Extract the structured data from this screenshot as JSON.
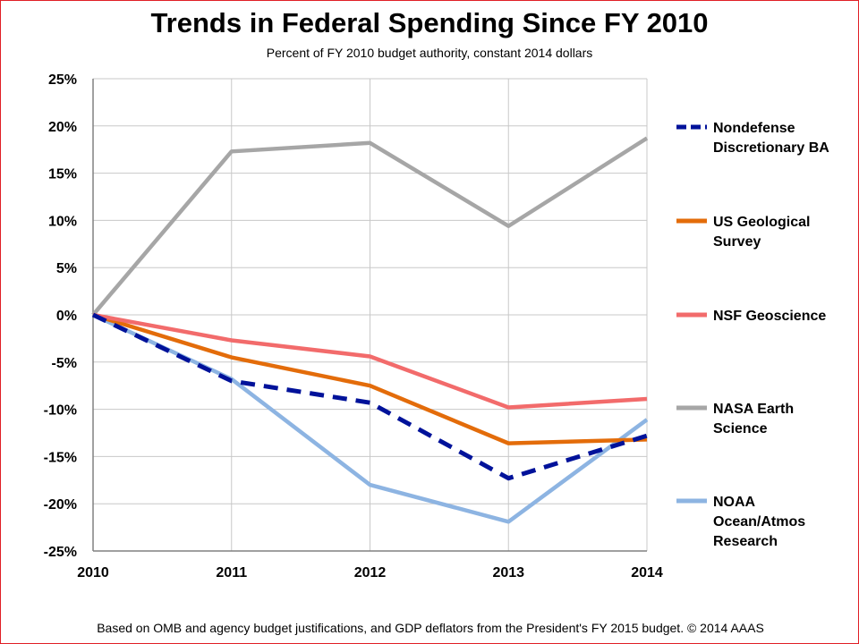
{
  "header": {
    "title": "Trends in Federal Spending Since FY 2010",
    "subtitle": "Percent of FY 2010 budget authority, constant 2014 dollars"
  },
  "footer": {
    "note": "Based on OMB and agency budget justifications, and GDP deflators from the President's FY 2015 budget. © 2014 AAAS"
  },
  "colors": {
    "border": "#e01f26",
    "grid": "#c8c8c8",
    "axis": "#808080"
  },
  "chart_data": {
    "type": "line",
    "title": "Trends in Federal Spending Since FY 2010",
    "subtitle": "Percent of FY 2010 budget authority, constant 2014 dollars",
    "xlabel": "",
    "ylabel": "",
    "x": [
      "2010",
      "2011",
      "2012",
      "2013",
      "2014"
    ],
    "ylim": [
      -25,
      25
    ],
    "yticks": [
      25,
      20,
      15,
      10,
      5,
      0,
      -5,
      -10,
      -15,
      -20,
      -25
    ],
    "ytick_labels": [
      "25%",
      "20%",
      "15%",
      "10%",
      "5%",
      "0%",
      "-5%",
      "-10%",
      "-15%",
      "-20%",
      "-25%"
    ],
    "grid": true,
    "legend_position": "right",
    "series": [
      {
        "name": "Nondefense Discretionary BA",
        "legend_lines": [
          "Nondefense",
          "Discretionary BA"
        ],
        "values": [
          0,
          -7.0,
          -9.3,
          -17.3,
          -12.8
        ],
        "color": "#00129a",
        "dashed": true
      },
      {
        "name": "US Geological Survey",
        "legend_lines": [
          "US Geological",
          "Survey"
        ],
        "values": [
          0,
          -4.5,
          -7.5,
          -13.6,
          -13.2
        ],
        "color": "#e36c0a",
        "dashed": false
      },
      {
        "name": "NSF Geoscience",
        "legend_lines": [
          "NSF Geoscience"
        ],
        "values": [
          0,
          -2.7,
          -4.4,
          -9.8,
          -8.9
        ],
        "color": "#f26b6b",
        "dashed": false
      },
      {
        "name": "NASA Earth Science",
        "legend_lines": [
          "NASA Earth",
          "Science"
        ],
        "values": [
          0,
          17.3,
          18.2,
          9.4,
          18.7
        ],
        "color": "#a6a6a6",
        "dashed": false
      },
      {
        "name": "NOAA Ocean/Atmos Research",
        "legend_lines": [
          "NOAA",
          "Ocean/Atmos",
          "Research"
        ],
        "values": [
          0,
          -6.8,
          -18.0,
          -21.9,
          -11.1
        ],
        "color": "#8db4e2",
        "dashed": false
      }
    ]
  }
}
